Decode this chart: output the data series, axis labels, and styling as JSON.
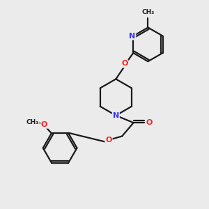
{
  "background_color": "#ebebeb",
  "bond_color": "#1a1a1a",
  "nitrogen_color": "#3333ff",
  "oxygen_color": "#ff2222",
  "line_width": 1.6,
  "figsize": [
    3.0,
    3.0
  ],
  "dpi": 100,
  "xlim": [
    0,
    10
  ],
  "ylim": [
    0,
    10
  ]
}
